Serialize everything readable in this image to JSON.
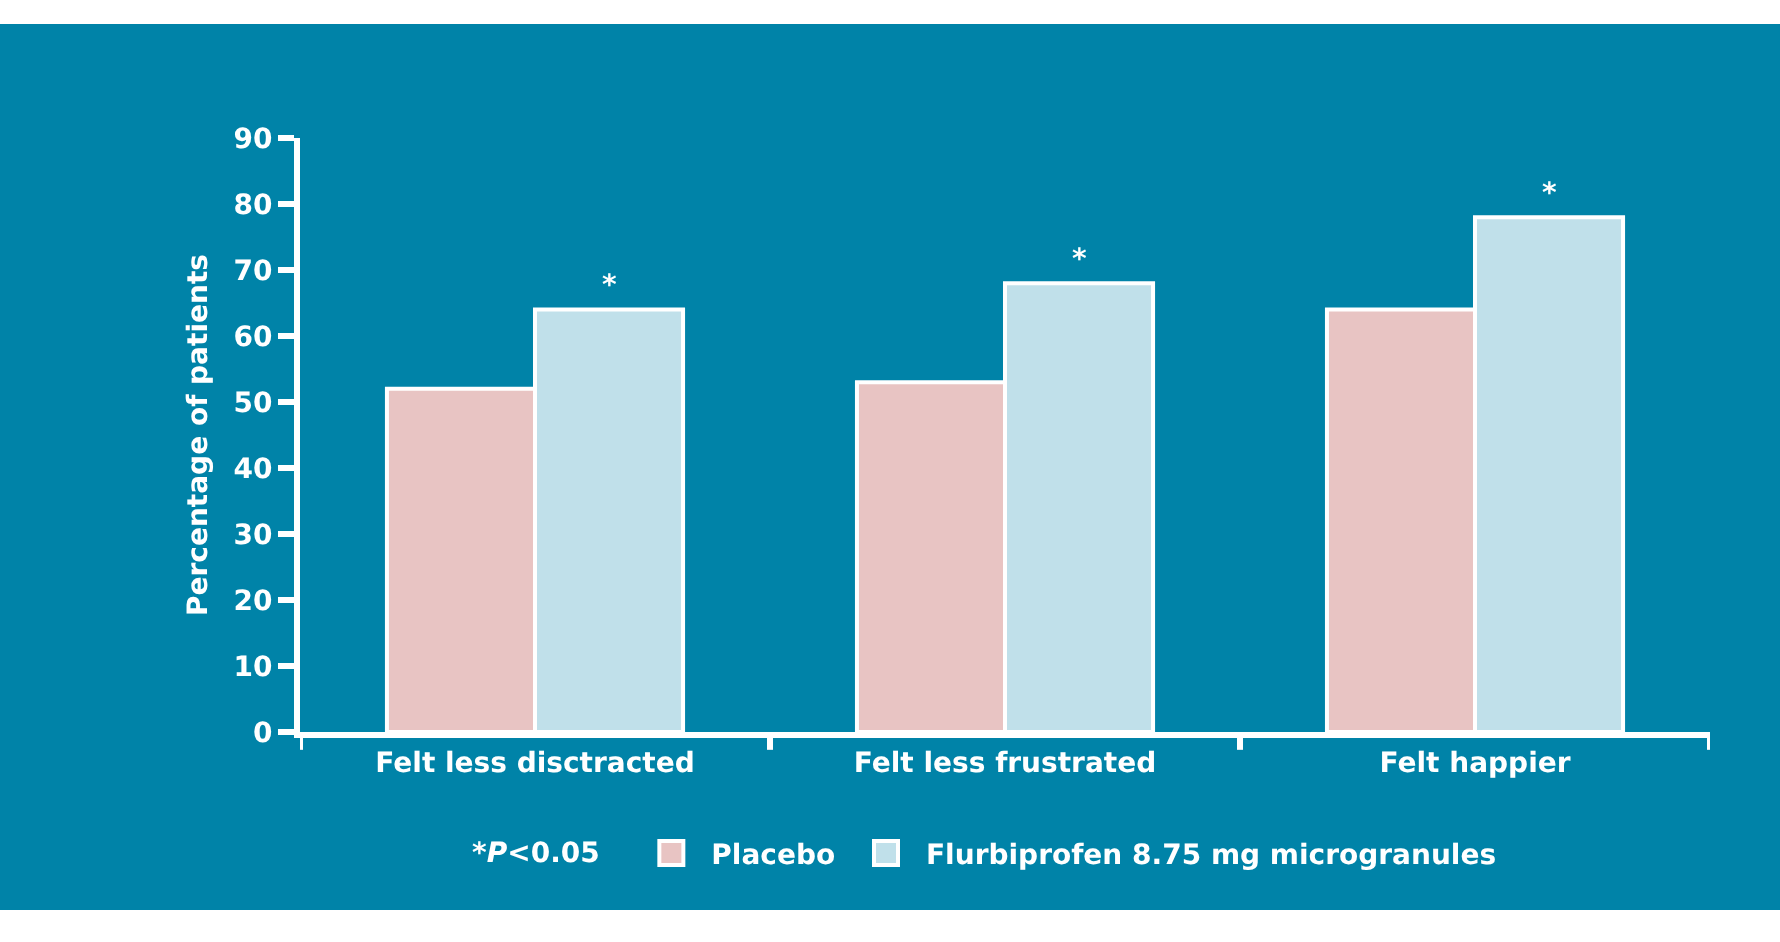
{
  "chart_data": {
    "type": "bar",
    "ylabel": "Percentage of patients",
    "categories": [
      "Felt less disctracted",
      "Felt less frustrated",
      "Felt happier"
    ],
    "series": [
      {
        "name": "Placebo",
        "color": "#e8c4c3",
        "values": [
          52,
          53,
          64
        ]
      },
      {
        "name": "Flurbiprofen 8.75 mg microgranules",
        "color": "#c0e0ea",
        "values": [
          64,
          68,
          78
        ]
      }
    ],
    "ylim": [
      0,
      90
    ],
    "yticks": [
      0,
      10,
      20,
      30,
      40,
      50,
      60,
      70,
      80,
      90
    ],
    "grid": false,
    "legend": "bottom",
    "annotations": [
      {
        "text": "*",
        "x": "Felt less disctracted",
        "y": 64
      },
      {
        "text": "*",
        "x": "Felt less frustrated",
        "y": 68
      },
      {
        "text": "*",
        "x": "Felt happier",
        "y": 78
      },
      "*P<0.05"
    ]
  }
}
